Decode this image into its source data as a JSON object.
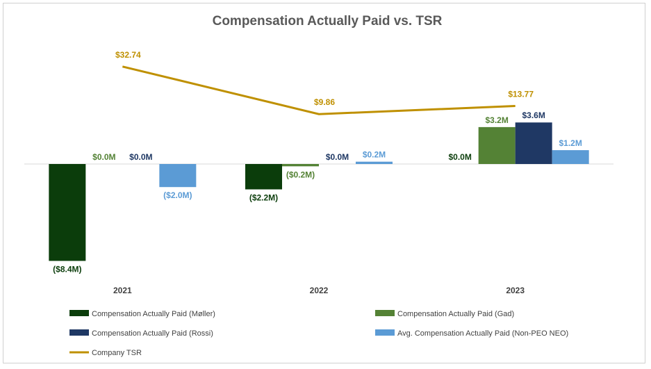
{
  "chart_data": {
    "type": "bar",
    "title": "Compensation Actually Paid vs. TSR",
    "categories": [
      "2021",
      "2022",
      "2023"
    ],
    "series": [
      {
        "name": "Compensation Actually Paid (Møller)",
        "color": "#0b3d0b",
        "values": [
          -8.4,
          -2.2,
          0.0
        ],
        "labels": [
          "($8.4M)",
          "($2.2M)",
          "$0.0M"
        ]
      },
      {
        "name": "Compensation Actually Paid (Gad)",
        "color": "#548235",
        "values": [
          0.0,
          -0.2,
          3.2
        ],
        "labels": [
          "$0.0M",
          "($0.2M)",
          "$3.2M"
        ]
      },
      {
        "name": "Compensation Actually Paid (Rossi)",
        "color": "#1f3864",
        "values": [
          0.0,
          0.0,
          3.6
        ],
        "labels": [
          "$0.0M",
          "$0.0M",
          "$3.6M"
        ]
      },
      {
        "name": "Avg. Compensation Actually Paid (Non-PEO NEO)",
        "color": "#5b9bd5",
        "values": [
          -2.0,
          0.2,
          1.2
        ],
        "labels": [
          "($2.0M)",
          "$0.2M",
          "$1.2M"
        ]
      }
    ],
    "line_series": {
      "name": "Company TSR",
      "color": "#bf9000",
      "values": [
        32.74,
        9.86,
        13.77
      ],
      "labels": [
        "$32.74",
        "$9.86",
        "$13.77"
      ]
    },
    "legend": [
      "Compensation Actually Paid (Møller)",
      "Compensation Actually Paid (Gad)",
      "Compensation Actually Paid (Rossi)",
      "Avg. Compensation Actually Paid (Non-PEO NEO)",
      "Company TSR"
    ],
    "legend_position": "bottom",
    "xlabel": "",
    "ylabel": ""
  }
}
